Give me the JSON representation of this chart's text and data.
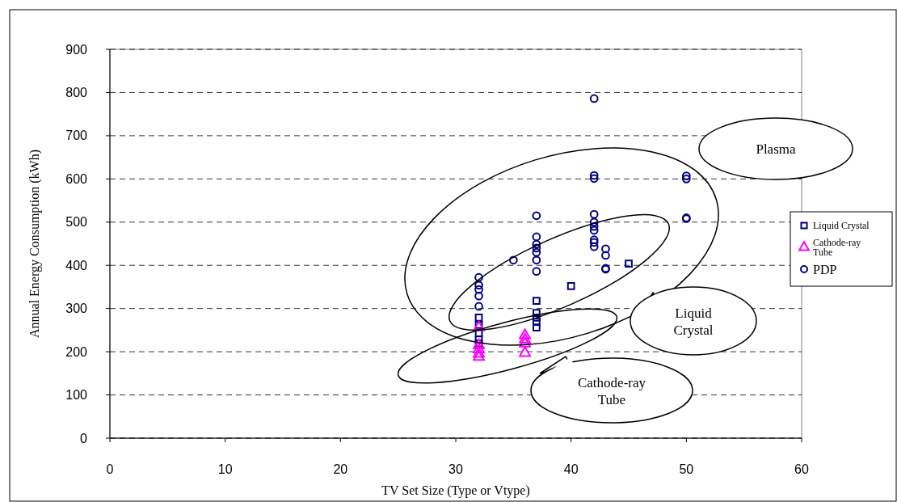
{
  "chart_data": {
    "type": "scatter",
    "xlabel": "TV Set Size (Type or Vtype)",
    "ylabel": "Annual Energy Consumption (kWh)",
    "xlim": [
      0,
      60
    ],
    "xticks": [
      0,
      10,
      20,
      30,
      40,
      50,
      60
    ],
    "ylim": [
      0,
      900
    ],
    "yticks": [
      0,
      100,
      200,
      300,
      400,
      500,
      600,
      700,
      800,
      900
    ],
    "grid": "y",
    "legend": "right",
    "series": [
      {
        "name": "Liquid Crystal",
        "color": "#000080",
        "marker": "square",
        "x": [
          32,
          32,
          32,
          32,
          32,
          37,
          37,
          37,
          37,
          37,
          40,
          45
        ],
        "values": [
          279,
          262,
          243,
          228,
          219,
          318,
          290,
          279,
          269,
          256,
          352,
          404
        ]
      },
      {
        "name": "Cathode-ray Tube",
        "color": "#ff00ff",
        "marker": "triangle",
        "x": [
          32,
          32,
          32,
          32,
          32,
          36,
          36,
          36,
          36
        ],
        "values": [
          256,
          215,
          205,
          195,
          188,
          238,
          228,
          219,
          197
        ]
      },
      {
        "name": "PDP",
        "color": "#000080",
        "marker": "circle",
        "x": [
          32,
          32,
          32,
          32,
          32,
          35,
          37,
          37,
          37,
          37,
          37,
          37,
          37,
          42,
          42,
          42,
          42,
          42,
          42,
          42,
          42,
          42,
          42,
          43,
          43,
          43,
          43,
          50,
          50,
          50,
          50
        ],
        "values": [
          372,
          354,
          344,
          329,
          305,
          412,
          515,
          466,
          449,
          440,
          430,
          412,
          386,
          786,
          608,
          601,
          518,
          500,
          490,
          481,
          459,
          453,
          443,
          438,
          423,
          393,
          391,
          607,
          600,
          510,
          508
        ]
      }
    ],
    "annotations": [
      "Plasma",
      "Liquid Crystal",
      "Cathode-ray Tube"
    ]
  }
}
